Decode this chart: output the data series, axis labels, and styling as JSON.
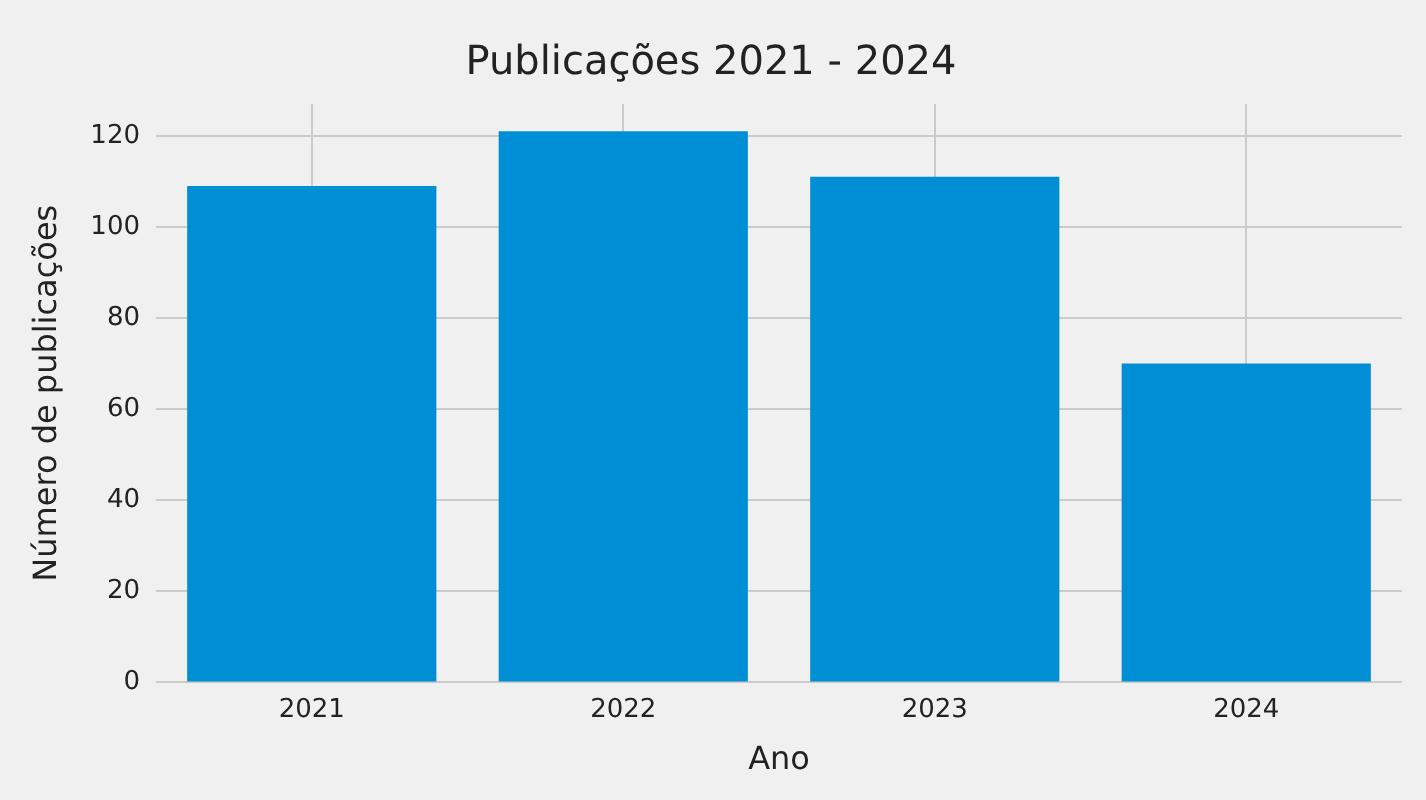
{
  "chart_data": {
    "type": "bar",
    "title": "Publicações 2021 - 2024",
    "xlabel": "Ano",
    "ylabel": "Número de publicações",
    "categories": [
      "2021",
      "2022",
      "2023",
      "2024"
    ],
    "values": [
      109,
      121,
      111,
      70
    ],
    "color": "#008fd5",
    "ylim": [
      0,
      127
    ],
    "yticks": [
      0,
      20,
      40,
      60,
      80,
      100,
      120
    ],
    "grid": true
  }
}
